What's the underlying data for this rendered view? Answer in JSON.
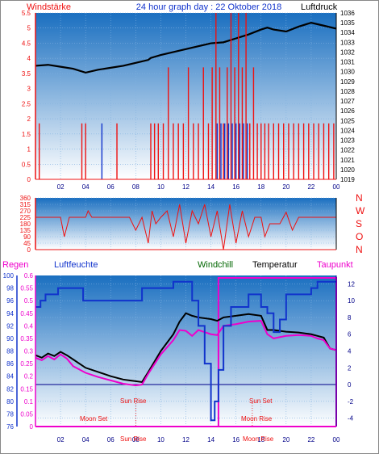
{
  "header": {
    "left_label": "Windstärke",
    "title": "24 hour graph day : 22 Oktober 2018",
    "right_label": "Luftdruck"
  },
  "colors": {
    "red": "#ee1111",
    "blue": "#1133cc",
    "magenta": "#ee00cc",
    "black": "#000000",
    "green": "#006600",
    "navy": "#000088",
    "sky_top": "#1a6fc0",
    "sky_bottom": "#ffffff"
  },
  "legend": {
    "regen": "Regen",
    "luftfeuchte": "Luftfeuchte",
    "windchill": "Windchill",
    "temperatur": "Temperatur",
    "taupunkt": "Taupunkt"
  },
  "chart_data": [
    {
      "type": "line",
      "name": "wind_and_pressure",
      "title": "24 hour graph day : 22 Oktober 2018",
      "ylabel": "Windstärke",
      "y2label": "Luftdruck",
      "x_ticks": [
        "02",
        "04",
        "06",
        "08",
        "10",
        "12",
        "14",
        "16",
        "18",
        "20",
        "22",
        "00"
      ],
      "xlim": [
        0,
        24
      ],
      "ylim": [
        0,
        5.5
      ],
      "y_ticks": [
        "0",
        "0.5",
        "1",
        "1.5",
        "2",
        "2.5",
        "3",
        "3.5",
        "4",
        "4.5",
        "5",
        "5.5"
      ],
      "y2lim": [
        1019,
        1036
      ],
      "y2_ticks": [
        "1019",
        "1020",
        "1021",
        "1022",
        "1023",
        "1024",
        "1025",
        "1026",
        "1027",
        "1028",
        "1029",
        "1030",
        "1031",
        "1032",
        "1033",
        "1034",
        "1035",
        "1036"
      ],
      "series": [
        {
          "color": "black",
          "axis": "y2",
          "x": [
            0,
            1,
            2,
            3,
            4,
            5,
            6,
            7,
            8,
            9,
            9.2,
            10,
            11,
            12,
            13,
            14,
            15,
            16,
            17,
            18,
            18.5,
            19,
            20,
            21,
            22,
            23,
            24
          ],
          "values": [
            1030.6,
            1030.7,
            1030.5,
            1030.3,
            1029.9,
            1030.2,
            1030.4,
            1030.6,
            1030.9,
            1031.2,
            1031.4,
            1031.7,
            1032,
            1032.3,
            1032.6,
            1032.9,
            1033,
            1033.4,
            1033.8,
            1034.3,
            1034.5,
            1034.3,
            1034.1,
            1034.6,
            1035,
            1034.7,
            1034.4
          ]
        },
        {
          "color": "red",
          "axis": "y",
          "kind": "spikes",
          "x": [
            0.3,
            3.7,
            4,
            6.5,
            9.2,
            9.5,
            9.8,
            10.2,
            10.6,
            11,
            11.4,
            11.8,
            12.2,
            12.6,
            13,
            13.4,
            13.8,
            14.1,
            14.4,
            14.7,
            15,
            15.3,
            15.6,
            15.9,
            16.2,
            16.5,
            16.8,
            17.1,
            17.4,
            17.7,
            18,
            18.3,
            18.6,
            19,
            19.4,
            19.8,
            20.2,
            20.6,
            21,
            21.4,
            21.8,
            22.2,
            22.6,
            23,
            23.4,
            23.8
          ],
          "values": [
            1.85,
            1.85,
            1.85,
            1.85,
            1.85,
            1.85,
            1.85,
            1.85,
            3.7,
            1.85,
            1.85,
            1.85,
            3.7,
            1.85,
            1.85,
            3.7,
            1.85,
            3.7,
            5.5,
            3.7,
            1.85,
            3.7,
            5.5,
            3.7,
            5.5,
            3.7,
            5.5,
            1.85,
            3.7,
            1.85,
            1.85,
            1.85,
            1.85,
            1.85,
            1.85,
            1.85,
            1.85,
            1.85,
            1.85,
            1.85,
            1.85,
            1.85,
            1.85,
            1.85,
            1.85,
            1.85
          ]
        },
        {
          "color": "blue",
          "axis": "y",
          "kind": "spikes",
          "x": [
            5.3,
            14.5,
            14.8,
            15.1,
            15.4,
            15.7,
            16,
            16.3,
            16.6,
            16.9
          ],
          "values": [
            1.85,
            1.85,
            1.85,
            1.85,
            1.85,
            1.85,
            1.85,
            1.85,
            1.85,
            1.85
          ]
        }
      ]
    },
    {
      "type": "line",
      "name": "wind_direction",
      "x_ticks": [
        "02",
        "04",
        "06",
        "08",
        "10",
        "12",
        "14",
        "16",
        "18",
        "20",
        "22",
        "00"
      ],
      "xlim": [
        0,
        24
      ],
      "ylim": [
        0,
        360
      ],
      "y_ticks": [
        "0",
        "45",
        "90",
        "135",
        "180",
        "225",
        "270",
        "315",
        "360"
      ],
      "direction_labels": [
        "N",
        "W",
        "S",
        "O",
        "N"
      ],
      "series": [
        {
          "color": "red",
          "x": [
            0,
            2,
            2.3,
            2.7,
            3,
            3.5,
            4,
            4.2,
            4.5,
            6,
            7,
            7.5,
            8,
            8.5,
            9,
            9.3,
            9.6,
            10,
            10.5,
            11,
            11.5,
            12,
            12.5,
            13,
            13.5,
            14,
            14.5,
            15,
            15.5,
            16,
            16.5,
            17,
            17.5,
            18,
            18.3,
            18.7,
            19,
            19.5,
            20,
            20.5,
            21,
            22,
            24
          ],
          "values": [
            225,
            225,
            90,
            225,
            225,
            225,
            225,
            270,
            225,
            225,
            225,
            225,
            135,
            225,
            45,
            270,
            180,
            225,
            270,
            90,
            315,
            45,
            270,
            180,
            315,
            90,
            270,
            0,
            315,
            45,
            270,
            90,
            225,
            225,
            90,
            180,
            180,
            180,
            260,
            135,
            225,
            225,
            225
          ]
        }
      ]
    },
    {
      "type": "line",
      "name": "temperature_humidity",
      "x_ticks": [
        "02",
        "04",
        "06",
        "08",
        "10",
        "12",
        "14",
        "16",
        "18",
        "20",
        "22",
        "00"
      ],
      "xlim": [
        0,
        24
      ],
      "ylim": [
        -5,
        13
      ],
      "y_ticks": [
        "-4",
        "-2",
        "0",
        "2",
        "4",
        "6",
        "8",
        "10",
        "12"
      ],
      "regen_ticks": [
        "0",
        "0.05",
        "0.1",
        "0.15",
        "0.2",
        "0.25",
        "0.3",
        "0.35",
        "0.4",
        "0.45",
        "0.5",
        "0.55",
        "0.6"
      ],
      "humidity_ticks": [
        "76",
        "78",
        "80",
        "82",
        "84",
        "86",
        "88",
        "90",
        "92",
        "94",
        "96",
        "98",
        "100"
      ],
      "annotations": [
        "Sun Rise",
        "Sun Set",
        "Moon Set",
        "Moon Rise",
        "Sun Rise",
        "Moon Rise"
      ],
      "series": [
        {
          "color": "black",
          "x": [
            0,
            0.5,
            1,
            1.5,
            2,
            2.5,
            3,
            4,
            5,
            6,
            7,
            7.5,
            8,
            8.5,
            9,
            10,
            11,
            11.5,
            12,
            12.5,
            13,
            14,
            14.5,
            15,
            16,
            17,
            18,
            18.5,
            19,
            20,
            21,
            22,
            22.5,
            23,
            23.5,
            24
          ],
          "values": [
            3.5,
            3.2,
            3.7,
            3.4,
            3.9,
            3.5,
            3,
            2,
            1.5,
            1,
            0.6,
            0.5,
            0.4,
            0.3,
            1.5,
            4,
            6,
            7.5,
            8.5,
            8.2,
            8,
            7.8,
            7.6,
            8,
            8.2,
            8.4,
            8.2,
            6.5,
            6.5,
            6.3,
            6.2,
            6,
            5.8,
            5.6,
            4.3,
            4.1
          ]
        },
        {
          "color": "magenta",
          "x": [
            0,
            0.5,
            1,
            1.5,
            2,
            2.5,
            3,
            4,
            5,
            6,
            7,
            7.5,
            8,
            8.5,
            9,
            10,
            11,
            11.5,
            12,
            12.5,
            13,
            14,
            14.5,
            15,
            16,
            17,
            18,
            18.5,
            19,
            20,
            21,
            22,
            22.5,
            23,
            23.5,
            24
          ],
          "values": [
            3.2,
            2.9,
            3.4,
            3,
            3.6,
            3.1,
            2.2,
            1.4,
            0.9,
            0.5,
            0.1,
            0,
            -0.1,
            0,
            1.3,
            3.6,
            5.3,
            6.5,
            6.4,
            5.8,
            6.5,
            6,
            5.9,
            7,
            7.2,
            7.5,
            7.6,
            6,
            5.5,
            5.8,
            5.9,
            5.8,
            5.5,
            5.3,
            4.3,
            4.1
          ]
        },
        {
          "color": "blue",
          "axis": "humidity",
          "kind": "step",
          "x": [
            0,
            0.4,
            0.8,
            1.8,
            2.8,
            3.8,
            5.5,
            6.5,
            7.5,
            8.5,
            9,
            9.5,
            10,
            11,
            12,
            12.5,
            13,
            13.5,
            14,
            14.3,
            14.6,
            15,
            15.6,
            16.3,
            17,
            17.5,
            18,
            18.5,
            19,
            19.5,
            20,
            21,
            21.5,
            22,
            22.5,
            23,
            24
          ],
          "values": [
            95,
            96,
            97,
            98,
            98,
            96,
            96,
            96,
            96,
            98,
            98,
            98,
            98,
            99,
            99,
            96,
            92,
            86,
            77,
            80,
            85,
            92,
            95,
            95,
            97,
            97,
            95,
            94,
            91,
            93,
            97,
            97,
            97,
            98,
            99,
            99,
            99
          ]
        }
      ]
    }
  ]
}
